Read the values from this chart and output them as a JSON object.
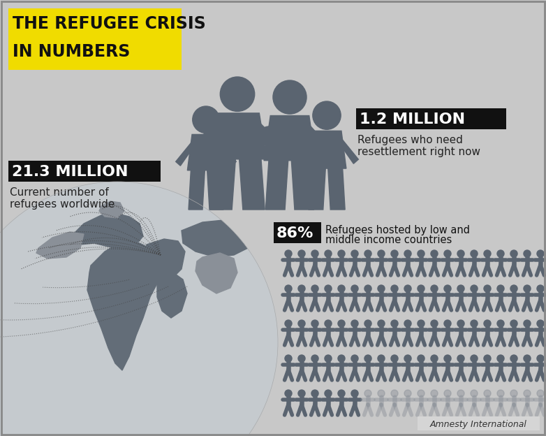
{
  "bg_color": "#c8c8c8",
  "title_line1": "THE REFUGEE CRISIS",
  "title_line2": "IN NUMBERS",
  "title_bg_color": "#f0dc00",
  "title_text_color": "#111111",
  "stat1_value": "21.3 MILLION",
  "stat1_desc_line1": "Current number of",
  "stat1_desc_line2": "refugees worldwide",
  "stat1_bg_color": "#111111",
  "stat1_text_color": "#ffffff",
  "stat2_value": "1.2 MILLION",
  "stat2_desc_line1": "Refugees who need",
  "stat2_desc_line2": "resettlement right now",
  "stat2_bg_color": "#111111",
  "stat2_text_color": "#ffffff",
  "stat3_value": "86%",
  "stat3_desc_line1": "Refugees hosted by low and",
  "stat3_desc_line2": "middle income countries",
  "stat3_bg_color": "#111111",
  "stat3_text_color": "#ffffff",
  "figure_color": "#5a6470",
  "figure_color_light": "#8a9098",
  "globe_color_dark": "#636d78",
  "globe_color_mid": "#8a9098",
  "globe_color_light": "#b8bfc5",
  "globe_ocean": "#c5cace",
  "credit_text": "Amnesty International",
  "credit_bg": "#d8d8d8",
  "n_people_dark": 86,
  "n_people_total": 100,
  "n_people_cols": 20,
  "n_people_rows": 5
}
